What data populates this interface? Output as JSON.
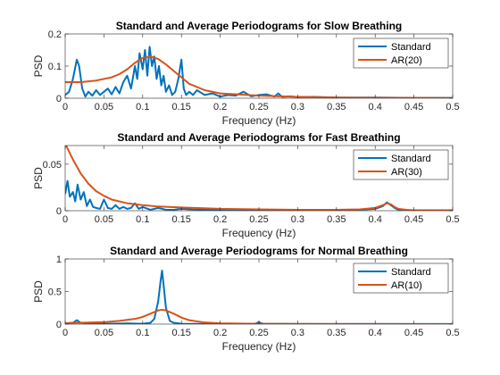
{
  "chart_data": [
    {
      "type": "line",
      "title": "Standard and Average Periodograms for Slow Breathing",
      "xlabel": "Frequency (Hz)",
      "ylabel": "PSD",
      "xlim": [
        0,
        0.5
      ],
      "ylim": [
        0,
        0.2
      ],
      "x_ticks": [
        "0",
        "0.05",
        "0.1",
        "0.15",
        "0.2",
        "0.25",
        "0.3",
        "0.35",
        "0.4",
        "0.45",
        "0.5"
      ],
      "y_ticks": [
        "0",
        "0.1",
        "0.2"
      ],
      "x_tick_values": [
        0,
        0.05,
        0.1,
        0.15,
        0.2,
        0.25,
        0.3,
        0.35,
        0.4,
        0.45,
        0.5
      ],
      "y_tick_values": [
        0,
        0.1,
        0.2
      ],
      "legend_position": "top-right",
      "series": [
        {
          "name": "Standard",
          "color": "#0072BD",
          "x": [
            0,
            0.005,
            0.01,
            0.015,
            0.018,
            0.022,
            0.026,
            0.03,
            0.035,
            0.04,
            0.045,
            0.05,
            0.055,
            0.06,
            0.065,
            0.07,
            0.075,
            0.08,
            0.085,
            0.09,
            0.093,
            0.096,
            0.1,
            0.103,
            0.106,
            0.109,
            0.112,
            0.115,
            0.118,
            0.121,
            0.124,
            0.127,
            0.13,
            0.134,
            0.138,
            0.142,
            0.146,
            0.15,
            0.153,
            0.156,
            0.16,
            0.165,
            0.17,
            0.18,
            0.19,
            0.2,
            0.21,
            0.22,
            0.23,
            0.24,
            0.25,
            0.26,
            0.27,
            0.275,
            0.28,
            0.29,
            0.3,
            0.32,
            0.35,
            0.4,
            0.45,
            0.5
          ],
          "values": [
            0.01,
            0.02,
            0.06,
            0.12,
            0.1,
            0.03,
            0.005,
            0.02,
            0.008,
            0.025,
            0.01,
            0.02,
            0.03,
            0.012,
            0.035,
            0.015,
            0.05,
            0.07,
            0.03,
            0.1,
            0.06,
            0.14,
            0.09,
            0.15,
            0.07,
            0.16,
            0.1,
            0.13,
            0.06,
            0.1,
            0.04,
            0.07,
            0.02,
            0.04,
            0.01,
            0.02,
            0.06,
            0.12,
            0.03,
            0.01,
            0.02,
            0.01,
            0.025,
            0.01,
            0.015,
            0.005,
            0.01,
            0.008,
            0.02,
            0.006,
            0.01,
            0.012,
            0.005,
            0.015,
            0.004,
            0.006,
            0.003,
            0.004,
            0.002,
            0.002,
            0.001,
            0.001
          ]
        },
        {
          "name": "AR(20)",
          "color": "#D95319",
          "x": [
            0,
            0.02,
            0.04,
            0.06,
            0.07,
            0.08,
            0.09,
            0.1,
            0.11,
            0.12,
            0.13,
            0.14,
            0.15,
            0.16,
            0.18,
            0.2,
            0.25,
            0.3,
            0.35,
            0.4,
            0.45,
            0.5
          ],
          "values": [
            0.05,
            0.05,
            0.055,
            0.065,
            0.075,
            0.09,
            0.11,
            0.125,
            0.13,
            0.122,
            0.105,
            0.085,
            0.065,
            0.045,
            0.025,
            0.015,
            0.008,
            0.004,
            0.002,
            0.001,
            0.001,
            0.0005
          ]
        }
      ]
    },
    {
      "type": "line",
      "title": "Standard and Average Periodograms for Fast Breathing",
      "xlabel": "Frequency (Hz)",
      "ylabel": "PSD",
      "xlim": [
        0,
        0.5
      ],
      "ylim": [
        0,
        0.07
      ],
      "x_ticks": [
        "0",
        "0.05",
        "0.1",
        "0.15",
        "0.2",
        "0.25",
        "0.3",
        "0.35",
        "0.4",
        "0.45",
        "0.5"
      ],
      "y_ticks": [
        "0",
        "0.05"
      ],
      "x_tick_values": [
        0,
        0.05,
        0.1,
        0.15,
        0.2,
        0.25,
        0.3,
        0.35,
        0.4,
        0.45,
        0.5
      ],
      "y_tick_values": [
        0,
        0.05
      ],
      "legend_position": "top-right",
      "series": [
        {
          "name": "Standard",
          "color": "#0072BD",
          "x": [
            0,
            0.003,
            0.006,
            0.01,
            0.013,
            0.016,
            0.02,
            0.024,
            0.028,
            0.032,
            0.036,
            0.04,
            0.045,
            0.05,
            0.055,
            0.06,
            0.065,
            0.07,
            0.075,
            0.08,
            0.085,
            0.09,
            0.095,
            0.1,
            0.11,
            0.12,
            0.13,
            0.14,
            0.15,
            0.17,
            0.2,
            0.25,
            0.3,
            0.35,
            0.38,
            0.4,
            0.41,
            0.415,
            0.42,
            0.425,
            0.43,
            0.44,
            0.45,
            0.5
          ],
          "values": [
            0.018,
            0.032,
            0.015,
            0.02,
            0.01,
            0.028,
            0.012,
            0.02,
            0.005,
            0.012,
            0.004,
            0.003,
            0.002,
            0.012,
            0.003,
            0.002,
            0.006,
            0.002,
            0.004,
            0.002,
            0.003,
            0.008,
            0.002,
            0.004,
            0.001,
            0.003,
            0.001,
            0.001,
            0.002,
            0.001,
            0.001,
            0.001,
            0.0005,
            0.0005,
            0.001,
            0.002,
            0.005,
            0.009,
            0.006,
            0.003,
            0.001,
            0.0005,
            0.0005,
            0.0005
          ]
        },
        {
          "name": "AR(30)",
          "color": "#D95319",
          "x": [
            0,
            0.01,
            0.02,
            0.03,
            0.04,
            0.05,
            0.06,
            0.08,
            0.1,
            0.12,
            0.15,
            0.2,
            0.25,
            0.3,
            0.35,
            0.38,
            0.4,
            0.41,
            0.415,
            0.42,
            0.425,
            0.43,
            0.44,
            0.45,
            0.5
          ],
          "values": [
            0.072,
            0.055,
            0.04,
            0.029,
            0.021,
            0.016,
            0.012,
            0.008,
            0.006,
            0.0045,
            0.0035,
            0.002,
            0.0015,
            0.001,
            0.001,
            0.0015,
            0.003,
            0.006,
            0.008,
            0.007,
            0.004,
            0.002,
            0.001,
            0.0005,
            0.0003
          ]
        }
      ]
    },
    {
      "type": "line",
      "title": "Standard and Average Periodograms for Normal Breathing",
      "xlabel": "Frequency (Hz)",
      "ylabel": "PSD",
      "xlim": [
        0,
        0.5
      ],
      "ylim": [
        0,
        1
      ],
      "x_ticks": [
        "0",
        "0.05",
        "0.1",
        "0.15",
        "0.2",
        "0.25",
        "0.3",
        "0.35",
        "0.4",
        "0.45",
        "0.5"
      ],
      "y_ticks": [
        "0",
        "0.5",
        "1"
      ],
      "x_tick_values": [
        0,
        0.05,
        0.1,
        0.15,
        0.2,
        0.25,
        0.3,
        0.35,
        0.4,
        0.45,
        0.5
      ],
      "y_tick_values": [
        0,
        0.5,
        1
      ],
      "legend_position": "top-right",
      "series": [
        {
          "name": "Standard",
          "color": "#0072BD",
          "x": [
            0,
            0.01,
            0.015,
            0.02,
            0.03,
            0.05,
            0.08,
            0.1,
            0.11,
            0.115,
            0.12,
            0.123,
            0.125,
            0.127,
            0.13,
            0.135,
            0.14,
            0.15,
            0.2,
            0.245,
            0.25,
            0.255,
            0.3,
            0.4,
            0.5
          ],
          "values": [
            0.01,
            0.02,
            0.06,
            0.02,
            0.01,
            0.005,
            0.01,
            0.005,
            0.02,
            0.08,
            0.35,
            0.65,
            0.82,
            0.6,
            0.25,
            0.05,
            0.02,
            0.005,
            0.002,
            0.005,
            0.03,
            0.005,
            0.002,
            0.001,
            0.001
          ]
        },
        {
          "name": "AR(10)",
          "color": "#D95319",
          "x": [
            0,
            0.02,
            0.05,
            0.07,
            0.09,
            0.1,
            0.11,
            0.12,
            0.125,
            0.13,
            0.14,
            0.15,
            0.16,
            0.18,
            0.2,
            0.25,
            0.3,
            0.4,
            0.5
          ],
          "values": [
            0.015,
            0.02,
            0.03,
            0.05,
            0.08,
            0.11,
            0.16,
            0.21,
            0.22,
            0.21,
            0.16,
            0.1,
            0.06,
            0.025,
            0.012,
            0.005,
            0.003,
            0.001,
            0.0005
          ]
        }
      ]
    }
  ]
}
